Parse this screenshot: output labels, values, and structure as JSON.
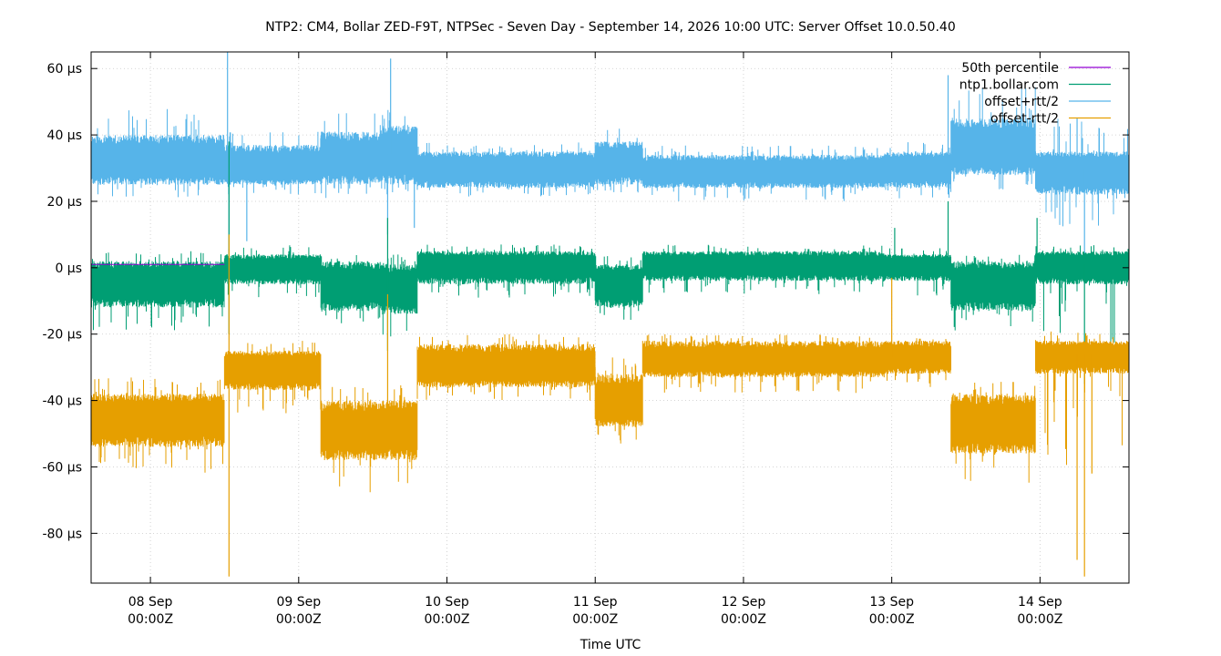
{
  "chart_data": {
    "type": "line",
    "title": "NTP2: CM4, Bollar ZED-F9T, NTPSec - Seven Day - September 14, 2026 10:00 UTC: Server Offset 10.0.50.40",
    "xlabel": "Time UTC",
    "ylabel": "",
    "x_unit": "days since 07 Sep 00:00Z",
    "xlim": [
      0.6,
      7.6
    ],
    "ylim": [
      -95,
      65
    ],
    "y_ticks": [
      60,
      40,
      20,
      0,
      -20,
      -40,
      -60,
      -80
    ],
    "y_tick_labels": [
      "60 µs",
      "40 µs",
      "20 µs",
      "0 µs",
      "-20 µs",
      "-40 µs",
      "-60 µs",
      "-80 µs"
    ],
    "x_ticks": [
      1,
      2,
      3,
      4,
      5,
      6,
      7
    ],
    "x_tick_labels": [
      [
        "08 Sep",
        "00:00Z"
      ],
      [
        "09 Sep",
        "00:00Z"
      ],
      [
        "10 Sep",
        "00:00Z"
      ],
      [
        "11 Sep",
        "00:00Z"
      ],
      [
        "12 Sep",
        "00:00Z"
      ],
      [
        "13 Sep",
        "00:00Z"
      ],
      [
        "14 Sep",
        "00:00Z"
      ]
    ],
    "grid": true,
    "legend_position": "top-right",
    "series": [
      {
        "name": "50th percentile",
        "color": "#9400d3",
        "kind": "line",
        "points": [
          [
            0.6,
            1
          ],
          [
            1.5,
            1
          ]
        ]
      },
      {
        "name": "ntp1.bollar.com",
        "color": "#009e73",
        "kind": "noise_band",
        "segments": [
          {
            "x": [
              0.6,
              1.5
            ],
            "center": -4,
            "low": -12,
            "high": 2,
            "spike_low": -19,
            "spike_high": 5
          },
          {
            "x": [
              1.5,
              2.15
            ],
            "center": 0,
            "low": -5,
            "high": 4,
            "spike_low": -9,
            "spike_high": 7
          },
          {
            "x": [
              2.15,
              2.55
            ],
            "center": -5,
            "low": -13,
            "high": 2,
            "spike_low": -19,
            "spike_high": 4
          },
          {
            "x": [
              2.55,
              2.8
            ],
            "center": -6,
            "low": -14,
            "high": 1,
            "spike_low": -21,
            "spike_high": 4
          },
          {
            "x": [
              2.8,
              4.0
            ],
            "center": 1,
            "low": -5,
            "high": 5,
            "spike_low": -9,
            "spike_high": 7
          },
          {
            "x": [
              4.0,
              4.32
            ],
            "center": -5,
            "low": -12,
            "high": 1,
            "spike_low": -16,
            "spike_high": 4
          },
          {
            "x": [
              4.32,
              5.95
            ],
            "center": 1,
            "low": -4,
            "high": 5,
            "spike_low": -8,
            "spike_high": 7
          },
          {
            "x": [
              5.95,
              6.4
            ],
            "center": 1,
            "low": -4,
            "high": 4,
            "spike_low": -9,
            "spike_high": 6
          },
          {
            "x": [
              6.4,
              6.97
            ],
            "center": -5,
            "low": -13,
            "high": 2,
            "spike_low": -19,
            "spike_high": 4
          },
          {
            "x": [
              6.97,
              7.6
            ],
            "center": 1,
            "low": -5,
            "high": 5,
            "spike_low": -25,
            "spike_high": 7
          }
        ],
        "spikes": [
          [
            1.53,
            38
          ],
          [
            1.53,
            -20
          ],
          [
            2.6,
            15
          ],
          [
            2.6,
            -25
          ],
          [
            6.02,
            12
          ],
          [
            6.38,
            20
          ],
          [
            6.98,
            15
          ],
          [
            7.3,
            -35
          ]
        ]
      },
      {
        "name": "offset+rtt/2",
        "color": "#56b4e9",
        "kind": "noise_band",
        "segments": [
          {
            "x": [
              0.6,
              1.5
            ],
            "center": 32,
            "low": 25,
            "high": 40,
            "spike_low": 21,
            "spike_high": 48
          },
          {
            "x": [
              1.5,
              2.15
            ],
            "center": 30,
            "low": 25,
            "high": 37,
            "spike_low": 22,
            "spike_high": 41
          },
          {
            "x": [
              2.15,
              2.55
            ],
            "center": 33,
            "low": 25,
            "high": 41,
            "spike_low": 21,
            "spike_high": 47
          },
          {
            "x": [
              2.55,
              2.8
            ],
            "center": 34,
            "low": 25,
            "high": 43,
            "spike_low": 21,
            "spike_high": 49
          },
          {
            "x": [
              2.8,
              4.0
            ],
            "center": 30,
            "low": 24,
            "high": 35,
            "spike_low": 21,
            "spike_high": 38
          },
          {
            "x": [
              4.0,
              4.32
            ],
            "center": 32,
            "low": 25,
            "high": 38,
            "spike_low": 22,
            "spike_high": 42
          },
          {
            "x": [
              4.32,
              5.95
            ],
            "center": 29,
            "low": 24,
            "high": 34,
            "spike_low": 20,
            "spike_high": 37
          },
          {
            "x": [
              5.95,
              6.4
            ],
            "center": 30,
            "low": 24,
            "high": 35,
            "spike_low": 20,
            "spike_high": 38
          },
          {
            "x": [
              6.4,
              6.97
            ],
            "center": 36,
            "low": 28,
            "high": 45,
            "spike_low": 23,
            "spike_high": 55
          },
          {
            "x": [
              6.97,
              7.6
            ],
            "center": 30,
            "low": 22,
            "high": 35,
            "spike_low": 10,
            "spike_high": 45
          }
        ],
        "spikes": [
          [
            1.52,
            65
          ],
          [
            1.53,
            5
          ],
          [
            2.62,
            63
          ],
          [
            2.6,
            10
          ],
          [
            2.78,
            12
          ],
          [
            1.65,
            8
          ],
          [
            6.38,
            58
          ],
          [
            7.25,
            45
          ],
          [
            7.3,
            -5
          ]
        ]
      },
      {
        "name": "offset-rtt/2",
        "color": "#e69f00",
        "kind": "noise_band",
        "segments": [
          {
            "x": [
              0.6,
              1.5
            ],
            "center": -45,
            "low": -54,
            "high": -38,
            "spike_low": -62,
            "spike_high": -33
          },
          {
            "x": [
              1.5,
              2.15
            ],
            "center": -30,
            "low": -37,
            "high": -25,
            "spike_low": -44,
            "spike_high": -22
          },
          {
            "x": [
              2.15,
              2.55
            ],
            "center": -49,
            "low": -58,
            "high": -40,
            "spike_low": -68,
            "spike_high": -34
          },
          {
            "x": [
              2.55,
              2.8
            ],
            "center": -48,
            "low": -58,
            "high": -40,
            "spike_low": -68,
            "spike_high": -35
          },
          {
            "x": [
              2.8,
              4.0
            ],
            "center": -30,
            "low": -36,
            "high": -23,
            "spike_low": -40,
            "spike_high": -20
          },
          {
            "x": [
              4.0,
              4.32
            ],
            "center": -41,
            "low": -48,
            "high": -32,
            "spike_low": -53,
            "spike_high": -27
          },
          {
            "x": [
              4.32,
              5.95
            ],
            "center": -28,
            "low": -33,
            "high": -22,
            "spike_low": -38,
            "spike_high": -20
          },
          {
            "x": [
              5.95,
              6.4
            ],
            "center": -27,
            "low": -32,
            "high": -22,
            "spike_low": -36,
            "spike_high": -20
          },
          {
            "x": [
              6.4,
              6.97
            ],
            "center": -47,
            "low": -56,
            "high": -38,
            "spike_low": -66,
            "spike_high": -34
          },
          {
            "x": [
              6.97,
              7.6
            ],
            "center": -26,
            "low": -32,
            "high": -22,
            "spike_low": -60,
            "spike_high": -19
          }
        ],
        "spikes": [
          [
            1.53,
            -93
          ],
          [
            1.53,
            10
          ],
          [
            2.6,
            -8
          ],
          [
            6.0,
            -3
          ],
          [
            7.25,
            -88
          ],
          [
            7.3,
            -93
          ],
          [
            7.35,
            -62
          ]
        ]
      }
    ],
    "legend_entries": [
      {
        "label": "50th percentile",
        "color": "#9400d3"
      },
      {
        "label": "ntp1.bollar.com",
        "color": "#009e73"
      },
      {
        "label": "offset+rtt/2",
        "color": "#56b4e9"
      },
      {
        "label": "offset-rtt/2",
        "color": "#e69f00"
      }
    ]
  }
}
